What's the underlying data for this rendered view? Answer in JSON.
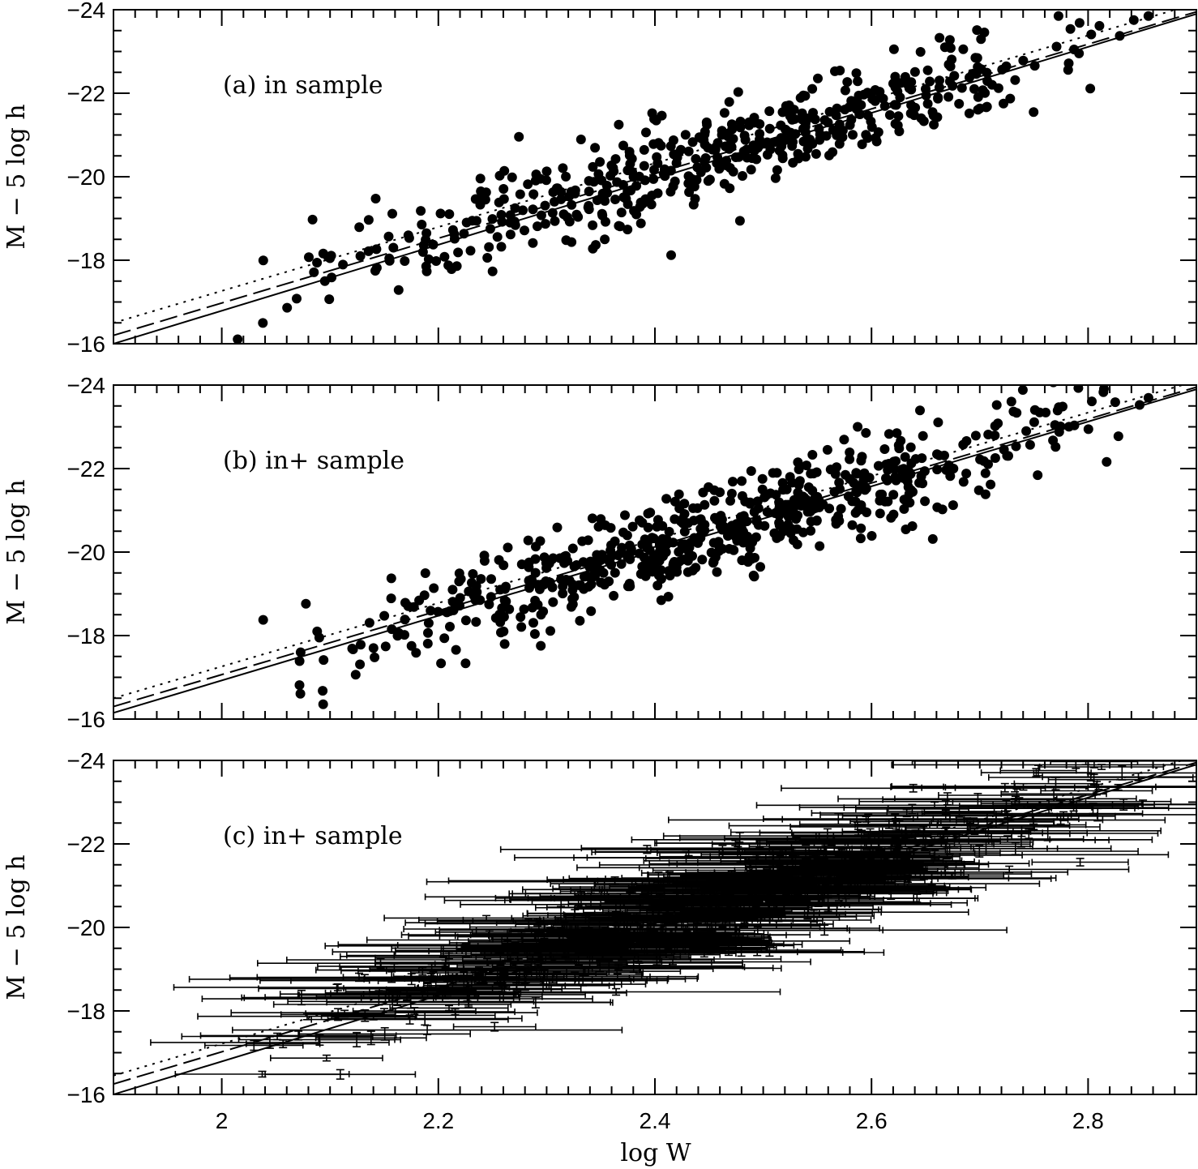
{
  "chart_data": [
    {
      "type": "scatter",
      "label": "(a) in sample",
      "xlabel": "",
      "ylabel": "M − 5 log h",
      "xlim": [
        1.9,
        2.9
      ],
      "ylim": [
        -16,
        -24
      ],
      "y_ticks": [
        "−24",
        "−22",
        "−20",
        "−18",
        "−16"
      ],
      "lines": [
        {
          "style": "solid",
          "x": [
            1.9,
            2.9
          ],
          "y": [
            -16.0,
            -23.9
          ]
        },
        {
          "style": "dashed",
          "x": [
            1.9,
            2.9
          ],
          "y": [
            -16.2,
            -23.95
          ]
        },
        {
          "style": "dotted",
          "x": [
            1.9,
            2.9
          ],
          "y": [
            -16.5,
            -24.15
          ]
        }
      ],
      "point_style": "filled-circle",
      "n_points": 520
    },
    {
      "type": "scatter",
      "label": "(b) in+ sample",
      "xlabel": "",
      "ylabel": "M − 5 log h",
      "xlim": [
        1.9,
        2.9
      ],
      "ylim": [
        -16,
        -24
      ],
      "y_ticks": [
        "−24",
        "−22",
        "−20",
        "−18",
        "−16"
      ],
      "lines": [
        {
          "style": "solid",
          "x": [
            1.9,
            2.9
          ],
          "y": [
            -16.15,
            -23.9
          ]
        },
        {
          "style": "dashed",
          "x": [
            1.9,
            2.9
          ],
          "y": [
            -16.3,
            -23.95
          ]
        },
        {
          "style": "dotted",
          "x": [
            1.9,
            2.9
          ],
          "y": [
            -16.5,
            -24.1
          ]
        }
      ],
      "point_style": "filled-circle",
      "n_points": 640
    },
    {
      "type": "scatter",
      "label": "(c) in+ sample",
      "xlabel": "log W",
      "ylabel": "M − 5 log h",
      "xlim": [
        1.9,
        2.9
      ],
      "ylim": [
        -16,
        -24
      ],
      "x_ticks": [
        "2",
        "2.2",
        "2.4",
        "2.6",
        "2.8"
      ],
      "y_ticks": [
        "−24",
        "−22",
        "−20",
        "−18",
        "−16"
      ],
      "lines": [
        {
          "style": "solid",
          "x": [
            1.9,
            2.9
          ],
          "y": [
            -16.0,
            -23.9
          ]
        },
        {
          "style": "dashed",
          "x": [
            1.9,
            2.9
          ],
          "y": [
            -16.25,
            -23.95
          ]
        },
        {
          "style": "dotted",
          "x": [
            1.9,
            2.9
          ],
          "y": [
            -16.45,
            -24.1
          ]
        }
      ],
      "point_style": "error-bars",
      "n_points": 640
    }
  ]
}
